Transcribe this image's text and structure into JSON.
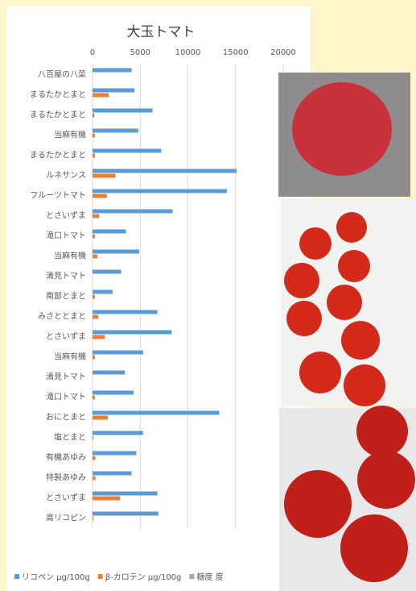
{
  "chart_data": {
    "type": "bar",
    "orientation": "horizontal",
    "title": "大玉トマト",
    "categories": [
      "八百屋の八菜",
      "まるたかとまと",
      "まるたかとまと",
      "当麻有機",
      "まるたかとまと",
      "ルネサンス",
      "フルーツトマト",
      "とさいずま",
      "滝口トマト",
      "当麻有機",
      "清見トマト",
      "南部とまと",
      "みさととまと",
      "とさいずま",
      "当麻有機",
      "清見トマト",
      "滝口トマト",
      "おにとまと",
      "塩とまと",
      "有機あゆみ",
      "特製あゆみ",
      "とさいずま",
      "高リコピン"
    ],
    "series": [
      {
        "name": "リコペン μg/100g",
        "color": "#5b9bd5",
        "values": [
          4100,
          4400,
          6300,
          4800,
          7200,
          15100,
          14100,
          8400,
          3500,
          4900,
          3000,
          2100,
          6800,
          8300,
          5300,
          3400,
          4300,
          13300,
          5300,
          4600,
          4100,
          6800,
          6900
        ]
      },
      {
        "name": "β-カロテン μg/100g",
        "color": "#ed7d31",
        "values": [
          0,
          1700,
          200,
          250,
          250,
          2400,
          1500,
          700,
          250,
          500,
          0,
          250,
          600,
          1300,
          250,
          0,
          250,
          1600,
          100,
          300,
          300,
          2900,
          100
        ]
      },
      {
        "name": "糖度 度",
        "color": "#a5a5a5",
        "values": [
          null,
          null,
          null,
          null,
          null,
          null,
          null,
          null,
          null,
          null,
          null,
          null,
          null,
          null,
          null,
          null,
          null,
          null,
          null,
          null,
          null,
          null,
          null
        ]
      }
    ],
    "xlim": [
      0,
      20000
    ],
    "xticks": [
      0,
      5000,
      10000,
      15000,
      20000
    ],
    "grid": true
  }
}
